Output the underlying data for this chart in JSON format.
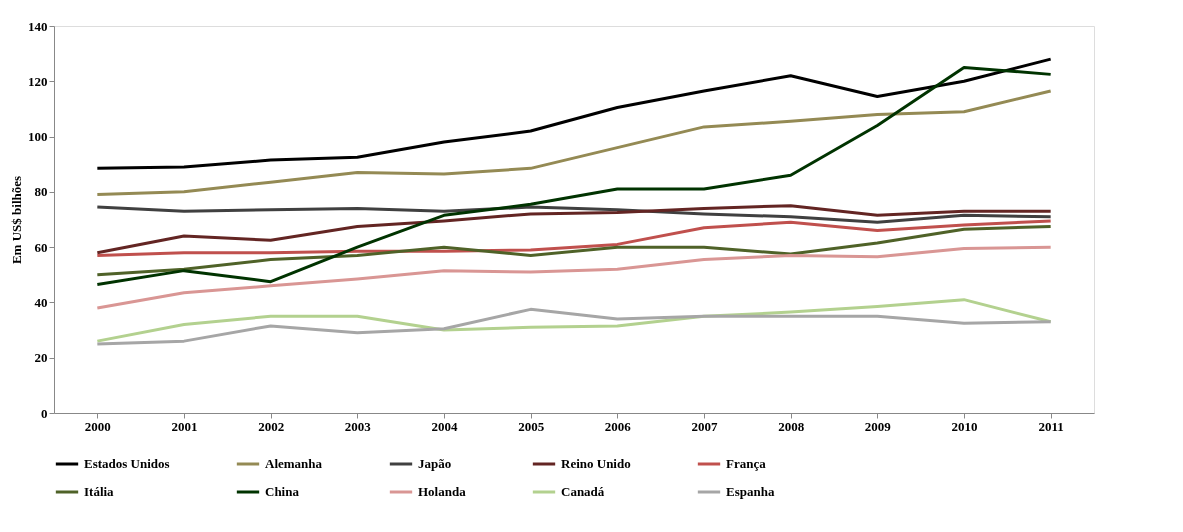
{
  "chart_data": {
    "type": "line",
    "ylabel": "Em US$ bilhões",
    "categories": [
      "2000",
      "2001",
      "2002",
      "2003",
      "2004",
      "2005",
      "2006",
      "2007",
      "2008",
      "2009",
      "2010",
      "2011"
    ],
    "ylim": [
      0,
      140
    ],
    "yticks": [
      0,
      20,
      40,
      60,
      80,
      100,
      120,
      140
    ],
    "grid": false,
    "legend": "bottom",
    "marker": "none",
    "line_style": "solid",
    "series": [
      {
        "name": "Estados Unidos",
        "color": "#000000",
        "values": [
          88.5,
          89,
          91.5,
          92.5,
          98,
          102,
          110.5,
          116.5,
          122,
          114.5,
          120,
          128
        ]
      },
      {
        "name": "Alemanha",
        "color": "#948a54",
        "values": [
          79,
          80,
          83.5,
          87,
          86.5,
          88.5,
          96,
          103.5,
          105.5,
          108,
          109,
          116.5
        ]
      },
      {
        "name": "Japão",
        "color": "#404040",
        "values": [
          74.5,
          73,
          73.5,
          74,
          73,
          74.5,
          73.5,
          72,
          71,
          69,
          71.5,
          71
        ]
      },
      {
        "name": "Reino Unido",
        "color": "#632523",
        "values": [
          58,
          64,
          62.5,
          67.5,
          69.5,
          72,
          72.5,
          74,
          75,
          71.5,
          73,
          73
        ]
      },
      {
        "name": "França",
        "color": "#c0504d",
        "values": [
          57,
          58,
          58,
          58.5,
          58.5,
          59,
          61,
          67,
          69,
          66,
          68,
          69.5
        ]
      },
      {
        "name": "Itália",
        "color": "#4f6228",
        "values": [
          50,
          52,
          55.5,
          57,
          60,
          57,
          60,
          60,
          57.5,
          61.5,
          66.5,
          67.5
        ]
      },
      {
        "name": "China",
        "color": "#003300",
        "values": [
          46.5,
          51.5,
          47.5,
          60,
          71.5,
          75.5,
          81,
          81,
          86,
          104,
          125,
          122.5
        ]
      },
      {
        "name": "Holanda",
        "color": "#d99694",
        "values": [
          38,
          43.5,
          46,
          48.5,
          51.5,
          51,
          52,
          55.5,
          57,
          56.5,
          59.5,
          60
        ]
      },
      {
        "name": "Canadá",
        "color": "#b3d18f",
        "values": [
          26,
          32,
          35,
          35,
          30,
          31,
          31.5,
          35,
          36.5,
          38.5,
          41,
          33
        ]
      },
      {
        "name": "Espanha",
        "color": "#a6a6a6",
        "values": [
          25,
          26,
          31.5,
          29,
          30.5,
          37.5,
          34,
          35,
          35,
          35,
          32.5,
          33
        ]
      }
    ]
  }
}
